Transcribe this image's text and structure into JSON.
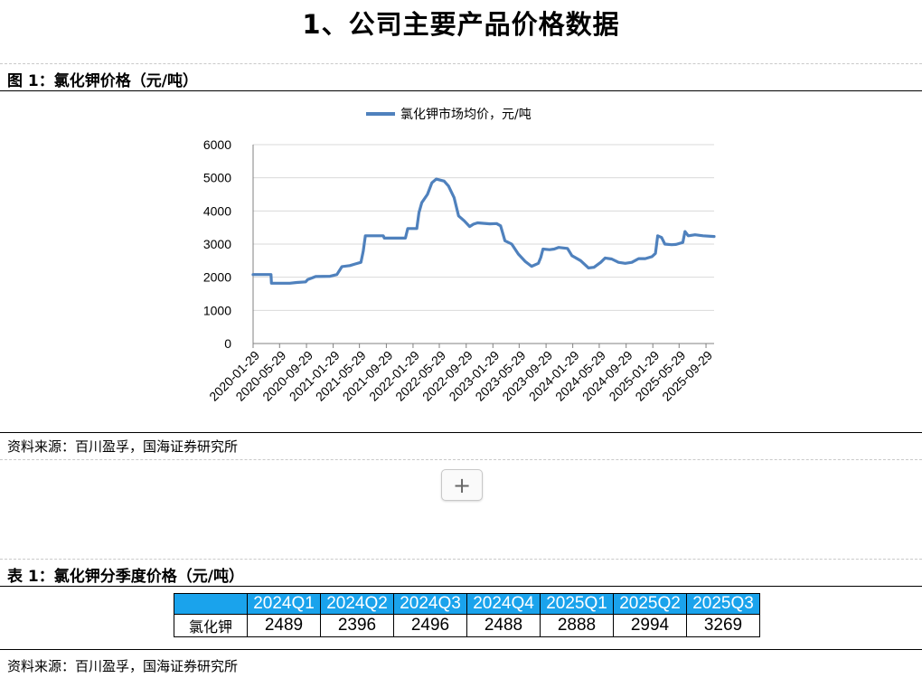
{
  "page": {
    "title": "1、公司主要产品价格数据"
  },
  "figure": {
    "caption": "图 1：氯化钾价格（元/吨）",
    "source": "资料来源：百川盈孚，国海证券研究所"
  },
  "chart_data": {
    "type": "line",
    "title": "",
    "xlabel": "",
    "ylabel": "",
    "ylim": [
      0,
      6000
    ],
    "yticks": [
      0,
      1000,
      2000,
      3000,
      4000,
      5000,
      6000
    ],
    "xlim": [
      "2020-01-29",
      "2025-11-05"
    ],
    "xtick_labels": [
      "2020-01-29",
      "2020-05-29",
      "2020-09-29",
      "2021-01-29",
      "2021-05-29",
      "2021-09-29",
      "2022-01-29",
      "2022-05-29",
      "2022-09-29",
      "2023-01-29",
      "2023-05-29",
      "2023-09-29",
      "2024-01-29",
      "2024-05-29",
      "2024-09-29",
      "2025-01-29",
      "2025-05-29",
      "2025-09-29"
    ],
    "legend_position": "top",
    "grid": "horizontal",
    "series": [
      {
        "name": "氯化钾市场均价，元/吨",
        "color": "#4f81bd",
        "points": [
          [
            "2020-01-29",
            2080
          ],
          [
            "2020-04-20",
            2080
          ],
          [
            "2020-04-22",
            1820
          ],
          [
            "2020-07-15",
            1820
          ],
          [
            "2020-08-15",
            1840
          ],
          [
            "2020-09-25",
            1860
          ],
          [
            "2020-10-05",
            1930
          ],
          [
            "2020-10-25",
            1980
          ],
          [
            "2020-11-10",
            2020
          ],
          [
            "2021-01-15",
            2030
          ],
          [
            "2021-02-15",
            2080
          ],
          [
            "2021-03-10",
            2320
          ],
          [
            "2021-04-15",
            2350
          ],
          [
            "2021-05-10",
            2400
          ],
          [
            "2021-06-05",
            2450
          ],
          [
            "2021-06-15",
            2780
          ],
          [
            "2021-06-25",
            3250
          ],
          [
            "2021-09-15",
            3250
          ],
          [
            "2021-09-20",
            3180
          ],
          [
            "2021-12-25",
            3180
          ],
          [
            "2022-01-05",
            3470
          ],
          [
            "2022-02-15",
            3470
          ],
          [
            "2022-02-25",
            3950
          ],
          [
            "2022-03-10",
            4250
          ],
          [
            "2022-04-05",
            4500
          ],
          [
            "2022-04-25",
            4850
          ],
          [
            "2022-05-15",
            4960
          ],
          [
            "2022-06-20",
            4900
          ],
          [
            "2022-07-10",
            4750
          ],
          [
            "2022-08-05",
            4400
          ],
          [
            "2022-08-25",
            3850
          ],
          [
            "2022-09-20",
            3700
          ],
          [
            "2022-10-15",
            3530
          ],
          [
            "2022-11-01",
            3600
          ],
          [
            "2022-11-20",
            3640
          ],
          [
            "2023-01-15",
            3610
          ],
          [
            "2023-02-15",
            3620
          ],
          [
            "2023-03-05",
            3550
          ],
          [
            "2023-03-25",
            3100
          ],
          [
            "2023-04-25",
            3000
          ],
          [
            "2023-05-25",
            2700
          ],
          [
            "2023-06-25",
            2480
          ],
          [
            "2023-07-25",
            2330
          ],
          [
            "2023-08-25",
            2420
          ],
          [
            "2023-09-05",
            2600
          ],
          [
            "2023-09-15",
            2850
          ],
          [
            "2023-10-15",
            2830
          ],
          [
            "2023-11-05",
            2850
          ],
          [
            "2023-11-25",
            2900
          ],
          [
            "2024-01-05",
            2870
          ],
          [
            "2024-01-25",
            2650
          ],
          [
            "2024-03-05",
            2500
          ],
          [
            "2024-04-10",
            2280
          ],
          [
            "2024-05-05",
            2300
          ],
          [
            "2024-06-05",
            2450
          ],
          [
            "2024-06-25",
            2580
          ],
          [
            "2024-07-25",
            2550
          ],
          [
            "2024-08-25",
            2450
          ],
          [
            "2024-09-25",
            2420
          ],
          [
            "2024-10-25",
            2450
          ],
          [
            "2024-11-25",
            2560
          ],
          [
            "2024-12-25",
            2560
          ],
          [
            "2025-01-25",
            2620
          ],
          [
            "2025-02-10",
            2720
          ],
          [
            "2025-02-20",
            3250
          ],
          [
            "2025-03-10",
            3200
          ],
          [
            "2025-03-25",
            3000
          ],
          [
            "2025-04-25",
            2980
          ],
          [
            "2025-05-15",
            2990
          ],
          [
            "2025-06-15",
            3050
          ],
          [
            "2025-06-25",
            3380
          ],
          [
            "2025-07-10",
            3250
          ],
          [
            "2025-08-10",
            3280
          ],
          [
            "2025-09-15",
            3250
          ],
          [
            "2025-11-05",
            3230
          ]
        ]
      }
    ]
  },
  "table": {
    "caption": "表 1：氯化钾分季度价格（元/吨）",
    "headers": [
      "",
      "2024Q1",
      "2024Q2",
      "2024Q3",
      "2024Q4",
      "2025Q1",
      "2025Q2",
      "2025Q3"
    ],
    "rows": [
      [
        "氯化钾",
        "2489",
        "2396",
        "2496",
        "2488",
        "2888",
        "2994",
        "3269"
      ]
    ],
    "source": "资料来源：百川盈孚，国海证券研究所",
    "header_color": "#1aa3ec"
  },
  "controls": {
    "add_icon": "plus-icon"
  }
}
